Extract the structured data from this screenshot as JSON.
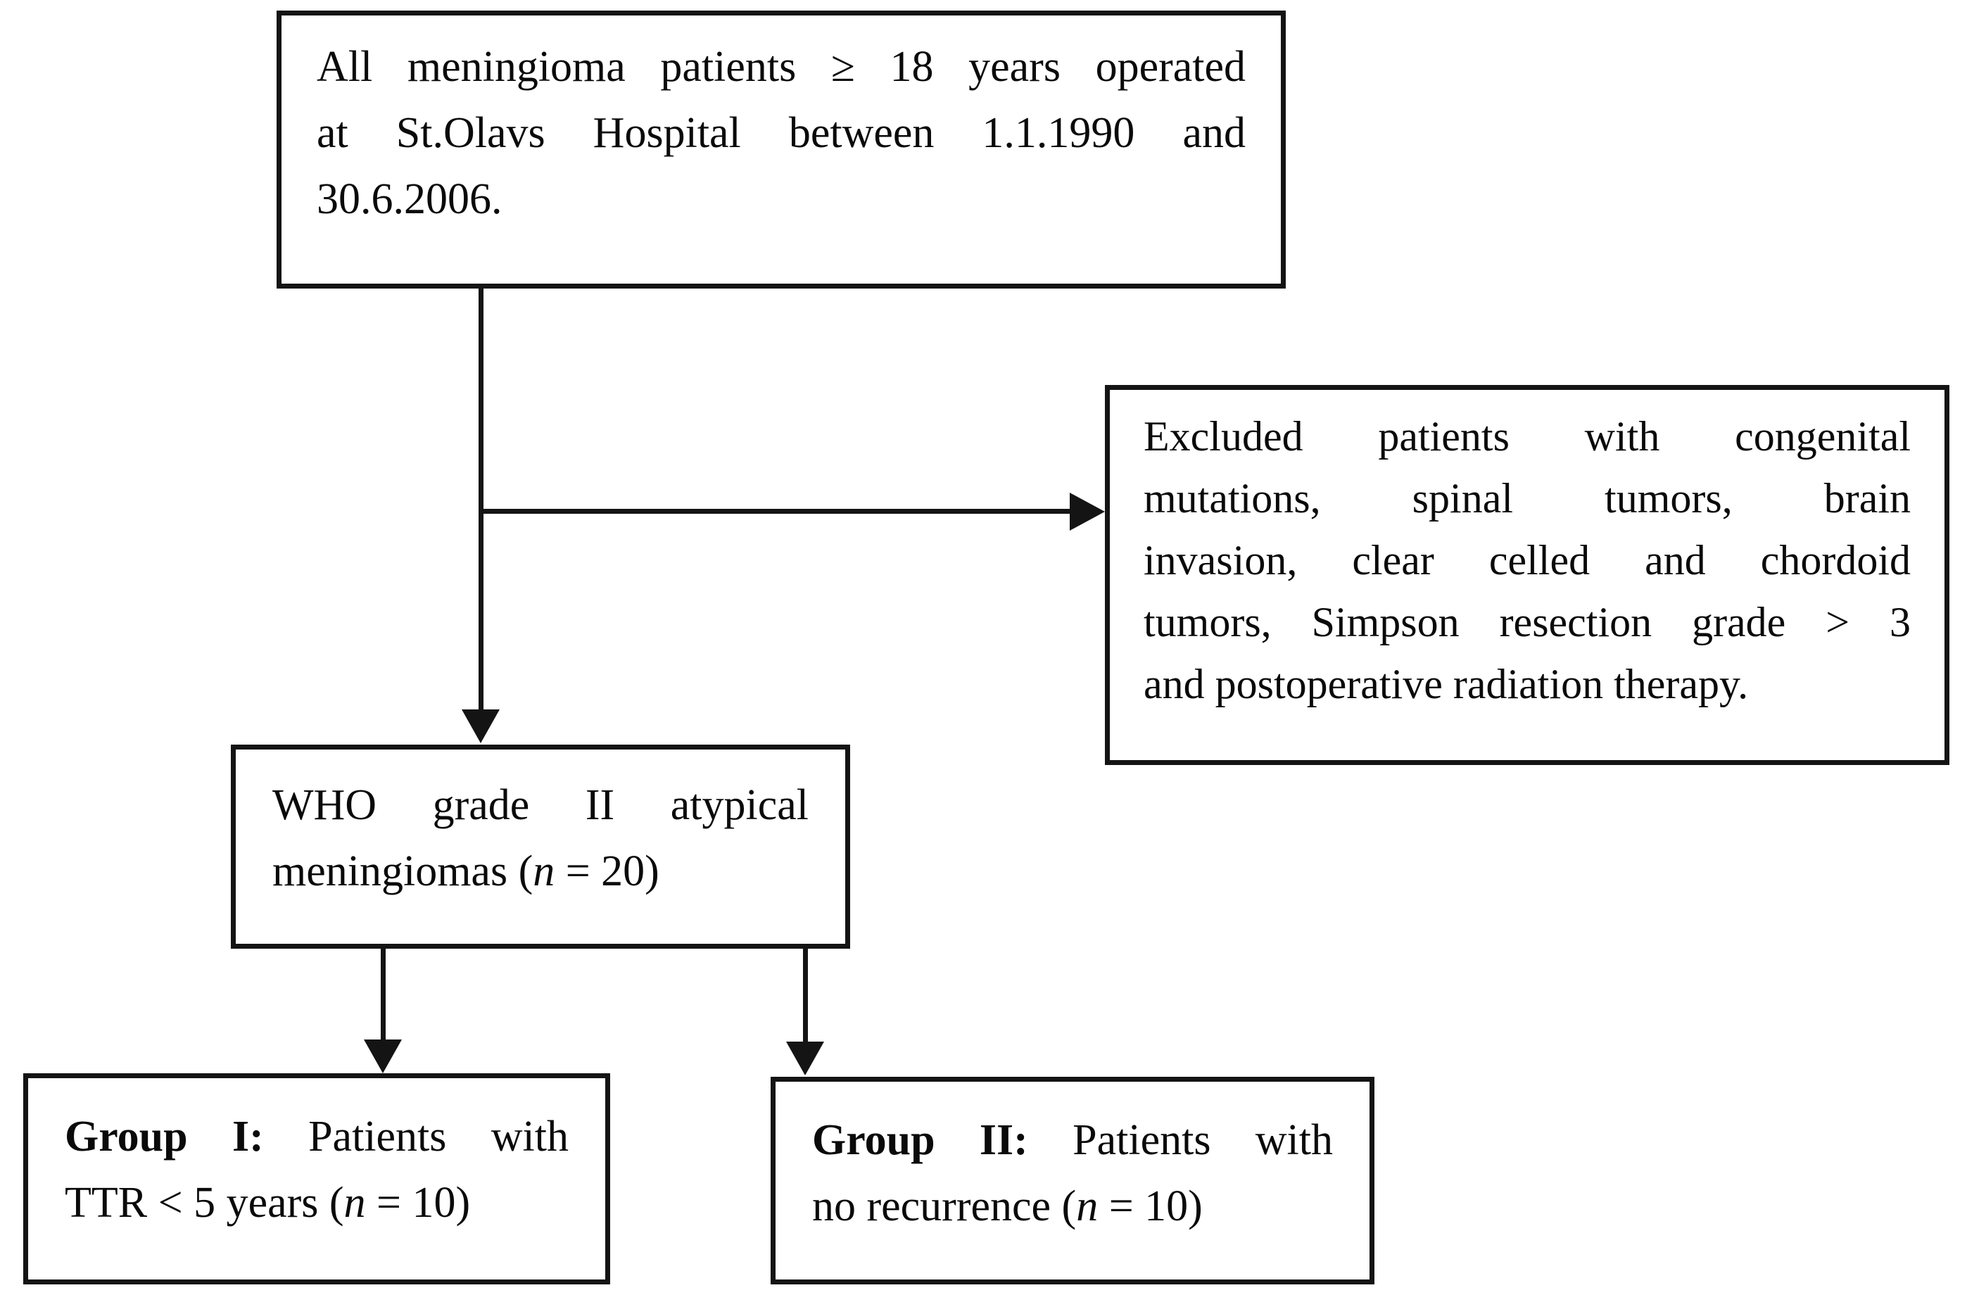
{
  "palette": {
    "background": "#ffffff",
    "ink": "#0a0a0a",
    "line_color": "#141414"
  },
  "diagram": {
    "type": "flowchart",
    "boxes": {
      "top": {
        "name": "all-meningioma-patients",
        "full_text": "All meningioma patients ≥ 18 years operated at St.Olavs Hospital between 1.1.1990 and 30.6.2006.",
        "lines": [
          [
            {
              "t": "All meningioma patients ≥ 18 years operated"
            }
          ],
          [
            {
              "t": "at St.Olavs Hospital between 1.1.1990 and"
            }
          ],
          [
            {
              "t": "30.6.2006."
            }
          ]
        ]
      },
      "excluded": {
        "name": "excluded-patients",
        "full_text": "Excluded patients with congenital mutations, spinal tumors, brain invasion, clear celled and chordoid tumors, Simpson resection grade > 3 and postoperative radiation therapy.",
        "lines": [
          [
            {
              "t": "Excluded patients with congenital"
            }
          ],
          [
            {
              "t": "mutations, spinal tumors, brain"
            }
          ],
          [
            {
              "t": "invasion, clear celled and chordoid"
            }
          ],
          [
            {
              "t": "tumors, Simpson resection grade > 3"
            }
          ],
          [
            {
              "t": "and postoperative radiation therapy."
            }
          ]
        ]
      },
      "who": {
        "name": "who-grade-ii-atypical-meningiomas",
        "full_text": "WHO grade II atypical meningiomas (n = 20)",
        "n_value": 20,
        "lines": [
          [
            {
              "t": "WHO grade II atypical"
            }
          ],
          [
            {
              "t": "meningiomas ("
            },
            {
              "t": "n",
              "i": true
            },
            {
              "t": " = 20)"
            }
          ]
        ]
      },
      "group1": {
        "name": "group-i-ttr-under-5-years",
        "full_text": "Group I: Patients with TTR < 5 years (n = 10)",
        "n_value": 10,
        "lines": [
          [
            {
              "t": "Group I:",
              "b": true
            },
            {
              "t": " Patients with"
            }
          ],
          [
            {
              "t": "TTR < 5 years ("
            },
            {
              "t": "n",
              "i": true
            },
            {
              "t": " = 10)"
            }
          ]
        ]
      },
      "group2": {
        "name": "group-ii-no-recurrence",
        "full_text": "Group II: Patients with no recurrence (n = 10)",
        "n_value": 10,
        "lines": [
          [
            {
              "t": "Group II:",
              "b": true
            },
            {
              "t": " Patients with"
            }
          ],
          [
            {
              "t": "no recurrence ("
            },
            {
              "t": "n",
              "i": true
            },
            {
              "t": " = 10)"
            }
          ]
        ]
      }
    },
    "connectors": [
      {
        "from": "top",
        "to": "who",
        "direction": "down"
      },
      {
        "from": "top",
        "to": "excluded",
        "direction": "right"
      },
      {
        "from": "who",
        "to": "group1",
        "direction": "down"
      },
      {
        "from": "who",
        "to": "group2",
        "direction": "down"
      }
    ]
  }
}
